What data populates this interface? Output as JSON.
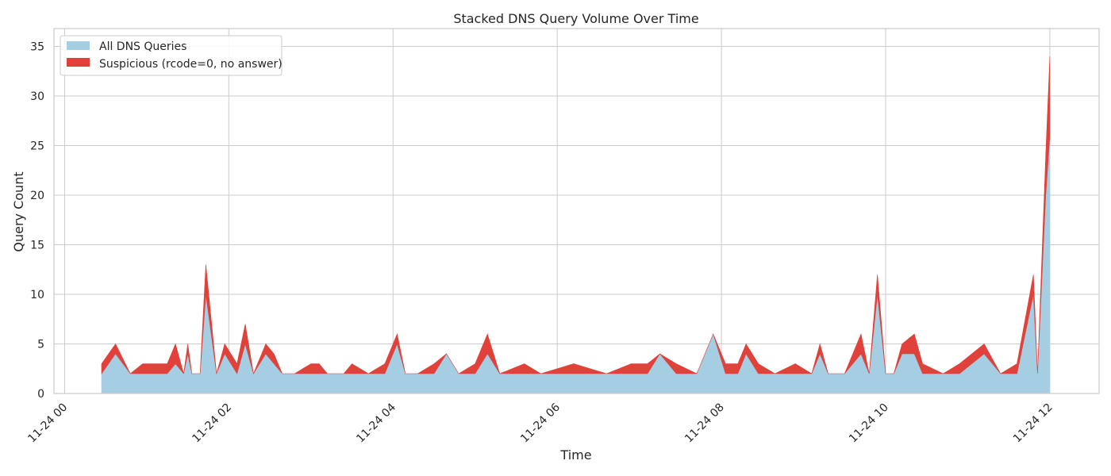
{
  "chart_data": {
    "type": "area",
    "stacked": true,
    "title": "Stacked DNS Query Volume Over Time",
    "xlabel": "Time",
    "ylabel": "Query Count",
    "ylim": [
      0,
      36.8
    ],
    "xlim_hours": [
      -0.13,
      12.6
    ],
    "yticks": [
      0,
      5,
      10,
      15,
      20,
      25,
      30,
      35
    ],
    "xticks": [
      {
        "h": 0,
        "label": "11-24 00"
      },
      {
        "h": 2,
        "label": "11-24 02"
      },
      {
        "h": 4,
        "label": "11-24 04"
      },
      {
        "h": 6,
        "label": "11-24 06"
      },
      {
        "h": 8,
        "label": "11-24 08"
      },
      {
        "h": 10,
        "label": "11-24 10"
      },
      {
        "h": 12,
        "label": "11-24 12"
      }
    ],
    "grid": true,
    "legend_position": "top-left",
    "x_unit": "hours since 11-24 00:00",
    "colors": {
      "all": "#a6cee3",
      "suspicious": "#e0423b",
      "grid": "#cccccc",
      "axes": "#cccccc",
      "text": "#262626"
    },
    "series": [
      {
        "name": "All DNS Queries",
        "points": [
          [
            0.45,
            2
          ],
          [
            0.62,
            4
          ],
          [
            0.8,
            2
          ],
          [
            0.95,
            2
          ],
          [
            1.1,
            2
          ],
          [
            1.25,
            2
          ],
          [
            1.35,
            3
          ],
          [
            1.45,
            2
          ],
          [
            1.5,
            4
          ],
          [
            1.55,
            2
          ],
          [
            1.65,
            2
          ],
          [
            1.72,
            10
          ],
          [
            1.85,
            2
          ],
          [
            1.95,
            4
          ],
          [
            2.1,
            2
          ],
          [
            2.2,
            5
          ],
          [
            2.3,
            2
          ],
          [
            2.45,
            4
          ],
          [
            2.55,
            3
          ],
          [
            2.65,
            2
          ],
          [
            2.8,
            2
          ],
          [
            3.0,
            2
          ],
          [
            3.1,
            2
          ],
          [
            3.2,
            2
          ],
          [
            3.4,
            2
          ],
          [
            3.5,
            2
          ],
          [
            3.7,
            2
          ],
          [
            3.9,
            2
          ],
          [
            4.05,
            5
          ],
          [
            4.15,
            2
          ],
          [
            4.3,
            2
          ],
          [
            4.5,
            2
          ],
          [
            4.65,
            4
          ],
          [
            4.8,
            2
          ],
          [
            5.0,
            2
          ],
          [
            5.15,
            4
          ],
          [
            5.3,
            2
          ],
          [
            5.6,
            2
          ],
          [
            5.8,
            2
          ],
          [
            6.2,
            2
          ],
          [
            6.6,
            2
          ],
          [
            6.9,
            2
          ],
          [
            7.1,
            2
          ],
          [
            7.25,
            4
          ],
          [
            7.45,
            2
          ],
          [
            7.7,
            2
          ],
          [
            7.9,
            6
          ],
          [
            8.05,
            2
          ],
          [
            8.2,
            2
          ],
          [
            8.3,
            4
          ],
          [
            8.45,
            2
          ],
          [
            8.65,
            2
          ],
          [
            8.9,
            2
          ],
          [
            9.1,
            2
          ],
          [
            9.2,
            4
          ],
          [
            9.3,
            2
          ],
          [
            9.5,
            2
          ],
          [
            9.7,
            4
          ],
          [
            9.8,
            2
          ],
          [
            9.9,
            10
          ],
          [
            10.0,
            2
          ],
          [
            10.1,
            2
          ],
          [
            10.2,
            4
          ],
          [
            10.35,
            4
          ],
          [
            10.45,
            2
          ],
          [
            10.7,
            2
          ],
          [
            10.9,
            2
          ],
          [
            11.2,
            4
          ],
          [
            11.4,
            2
          ],
          [
            11.6,
            2
          ],
          [
            11.8,
            10
          ],
          [
            11.85,
            2
          ],
          [
            11.95,
            20
          ],
          [
            12.0,
            26
          ]
        ]
      },
      {
        "name": "Suspicious (rcode=0, no answer)",
        "points": [
          [
            0.45,
            1
          ],
          [
            0.62,
            1
          ],
          [
            0.8,
            0
          ],
          [
            0.95,
            1
          ],
          [
            1.1,
            1
          ],
          [
            1.25,
            1
          ],
          [
            1.35,
            2
          ],
          [
            1.45,
            0
          ],
          [
            1.5,
            1
          ],
          [
            1.55,
            0
          ],
          [
            1.65,
            0
          ],
          [
            1.72,
            3
          ],
          [
            1.85,
            0
          ],
          [
            1.95,
            1
          ],
          [
            2.1,
            1
          ],
          [
            2.2,
            2
          ],
          [
            2.3,
            0
          ],
          [
            2.45,
            1
          ],
          [
            2.55,
            1
          ],
          [
            2.65,
            0
          ],
          [
            2.8,
            0
          ],
          [
            3.0,
            1
          ],
          [
            3.1,
            1
          ],
          [
            3.2,
            0
          ],
          [
            3.4,
            0
          ],
          [
            3.5,
            1
          ],
          [
            3.7,
            0
          ],
          [
            3.9,
            1
          ],
          [
            4.05,
            1
          ],
          [
            4.15,
            0
          ],
          [
            4.3,
            0
          ],
          [
            4.5,
            1
          ],
          [
            4.65,
            0
          ],
          [
            4.8,
            0
          ],
          [
            5.0,
            1
          ],
          [
            5.15,
            2
          ],
          [
            5.3,
            0
          ],
          [
            5.6,
            1
          ],
          [
            5.8,
            0
          ],
          [
            6.2,
            1
          ],
          [
            6.6,
            0
          ],
          [
            6.9,
            1
          ],
          [
            7.1,
            1
          ],
          [
            7.25,
            0
          ],
          [
            7.45,
            1
          ],
          [
            7.7,
            0
          ],
          [
            7.9,
            0
          ],
          [
            8.05,
            1
          ],
          [
            8.2,
            1
          ],
          [
            8.3,
            1
          ],
          [
            8.45,
            1
          ],
          [
            8.65,
            0
          ],
          [
            8.9,
            1
          ],
          [
            9.1,
            0
          ],
          [
            9.2,
            1
          ],
          [
            9.3,
            0
          ],
          [
            9.5,
            0
          ],
          [
            9.7,
            2
          ],
          [
            9.8,
            0
          ],
          [
            9.9,
            2
          ],
          [
            10.0,
            0
          ],
          [
            10.1,
            0
          ],
          [
            10.2,
            1
          ],
          [
            10.35,
            2
          ],
          [
            10.45,
            1
          ],
          [
            10.7,
            0
          ],
          [
            10.9,
            1
          ],
          [
            11.2,
            1
          ],
          [
            11.4,
            0
          ],
          [
            11.6,
            1
          ],
          [
            11.8,
            2
          ],
          [
            11.85,
            0
          ],
          [
            11.95,
            4
          ],
          [
            12.0,
            8
          ]
        ]
      }
    ]
  }
}
